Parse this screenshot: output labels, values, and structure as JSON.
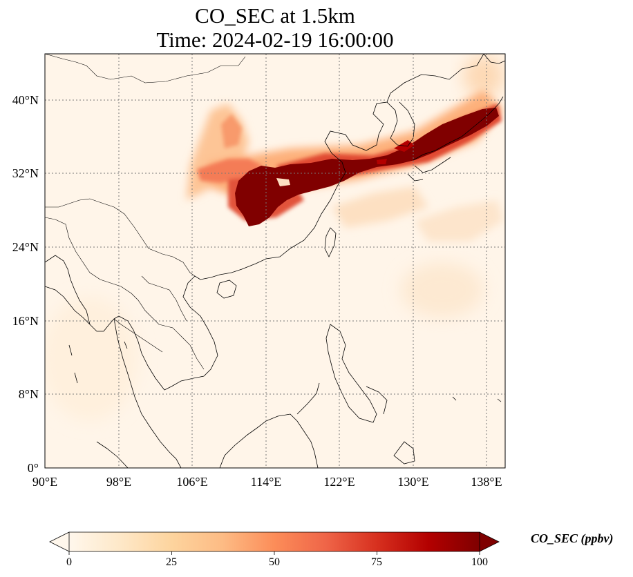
{
  "title_line1": "CO_SEC at 1.5km",
  "title_line2": "Time: 2024-02-19 16:00:00",
  "map": {
    "lon_range": [
      90,
      140
    ],
    "lat_range": [
      0,
      45
    ],
    "x_ticks": [
      "90°E",
      "98°E",
      "106°E",
      "114°E",
      "122°E",
      "130°E",
      "138°E"
    ],
    "y_ticks": [
      "0°",
      "8°N",
      "16°N",
      "24°N",
      "32°N",
      "40°N"
    ],
    "gridlines": true,
    "coastlines": true,
    "borders": true
  },
  "colorbar": {
    "label": "CO_SEC (ppbv)",
    "ticks": [
      "0",
      "25",
      "50",
      "75",
      "100"
    ],
    "range": [
      0,
      100
    ],
    "extend": "both",
    "colormap": "OrRd",
    "colors": [
      "#fff7ec",
      "#fee8c8",
      "#fdd49e",
      "#fdbb84",
      "#fc8d59",
      "#ef6548",
      "#d7301f",
      "#b30000",
      "#7f0000"
    ]
  },
  "plume": {
    "description_free": true,
    "core_lon_range": [
      110,
      138
    ],
    "core_lat_range": [
      27,
      39
    ],
    "max_value": 100
  }
}
